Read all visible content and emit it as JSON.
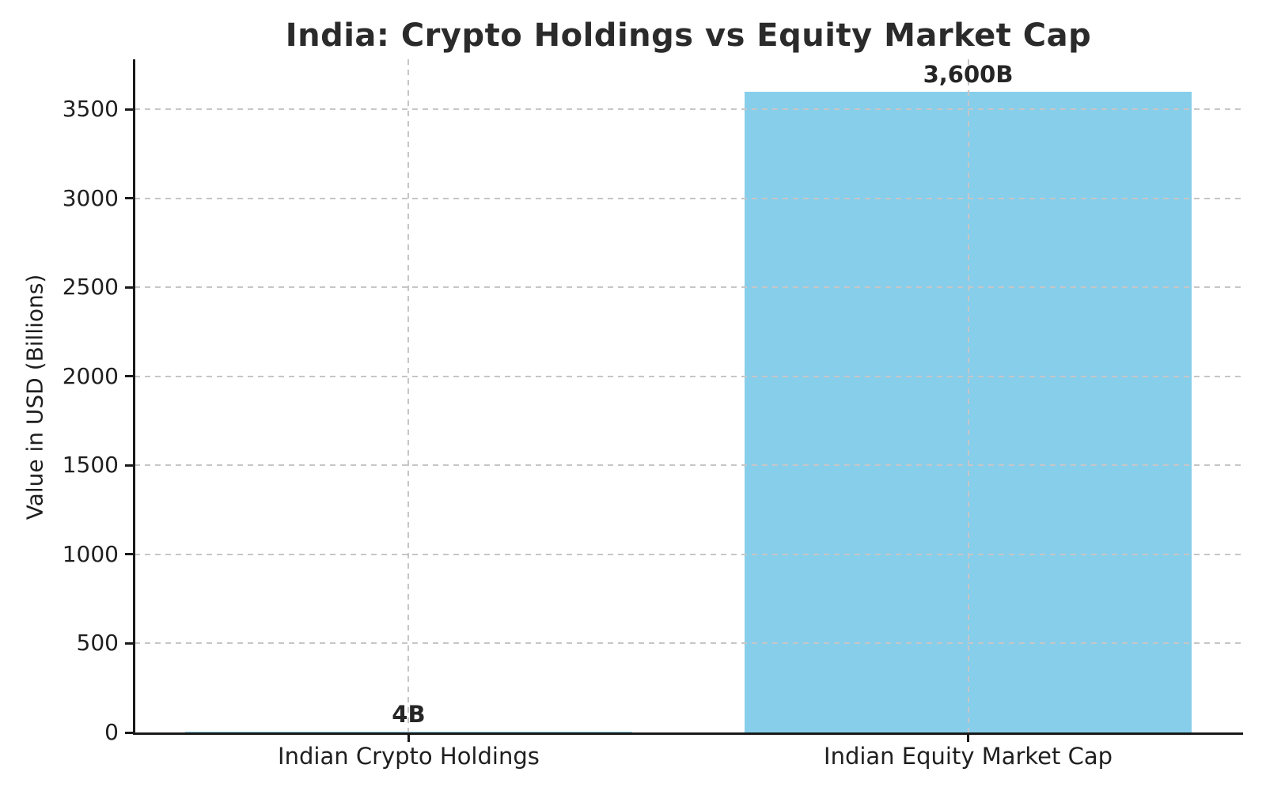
{
  "chart_data": {
    "type": "bar",
    "title": "India: Crypto Holdings vs Equity Market Cap",
    "xlabel": "",
    "ylabel": "Value in USD (Billions)",
    "categories": [
      "Indian Crypto Holdings",
      "Indian Equity Market Cap"
    ],
    "values": [
      4,
      3600
    ],
    "bar_value_labels": [
      "4B",
      "3,600B"
    ],
    "ytick_values": [
      0,
      500,
      1000,
      1500,
      2000,
      2500,
      3000,
      3500
    ],
    "ytick_labels": [
      "0",
      "500",
      "1000",
      "1500",
      "2000",
      "2500",
      "3000",
      "3500"
    ],
    "ylim": [
      0,
      3780
    ],
    "legend": "none",
    "grid": "dashed gridlines on both axes, drawn over bars",
    "colors": {
      "bar_fill": "#87CEEB",
      "gridline": "#c6c6c6",
      "spine": "#1a1a1a",
      "tick_text": "#1f1f1f",
      "title_text": "#2b2b2b",
      "value_label_text": "#262626"
    }
  }
}
